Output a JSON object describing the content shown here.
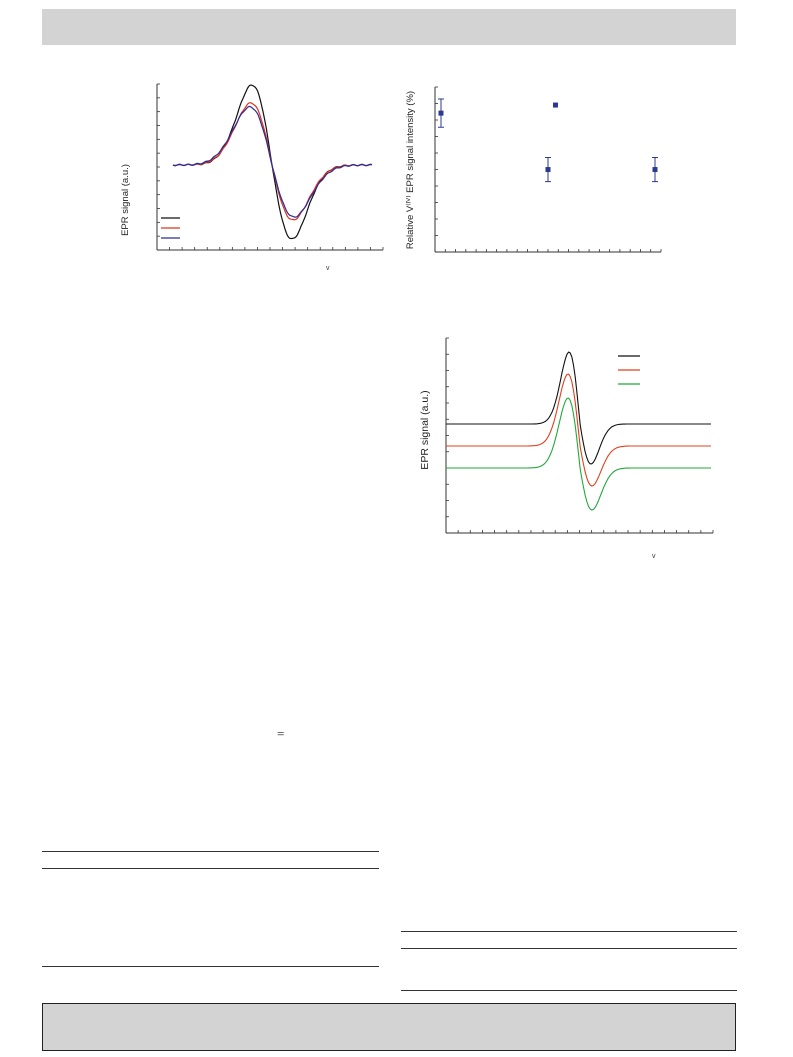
{
  "chart_data": [
    {
      "type": "line",
      "ylabel": "EPR signal (a.u.)",
      "xlabel_fragment": "v",
      "legend": "bottom-left",
      "series": [
        {
          "color": "#111111"
        },
        {
          "color": "#e0301e"
        },
        {
          "color": "#2b2b9c"
        }
      ]
    },
    {
      "type": "scatter",
      "ylabel": "Relative V⁽ᴵⱽ⁾ EPR signal intensity (%)",
      "marker_color": "#2b3a8f",
      "points": [
        {
          "x": 1,
          "y": 88,
          "err": 7
        },
        {
          "x": 2.07,
          "y": 92,
          "err": 0
        },
        {
          "x": 2,
          "y": 60,
          "err": 6
        },
        {
          "x": 3,
          "y": 60,
          "err": 6
        }
      ],
      "xlim": [
        1,
        3
      ],
      "ylim": [
        30,
        96
      ]
    },
    {
      "type": "line",
      "ylabel": "EPR signal (a.u.)",
      "xlabel_fragment": "v",
      "legend": "top-right",
      "series": [
        {
          "color": "#111111",
          "offset": 0
        },
        {
          "color": "#e0401e",
          "offset": -22
        },
        {
          "color": "#22a83a",
          "offset": -44
        }
      ]
    }
  ],
  "equation_sign": "="
}
